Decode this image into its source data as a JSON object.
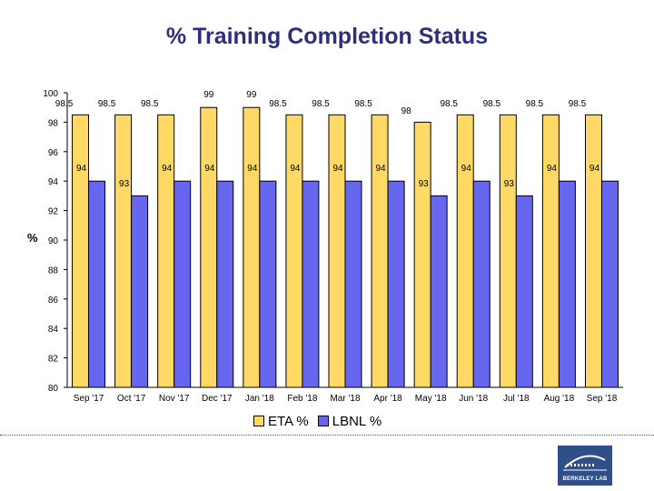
{
  "chart_data": {
    "type": "bar",
    "title": "% Training Completion Status",
    "ylabel": "%",
    "xlabel": "",
    "ylim": [
      80,
      100
    ],
    "yticks": [
      80,
      82,
      84,
      86,
      88,
      90,
      92,
      94,
      96,
      98,
      100
    ],
    "categories": [
      "Sep '17",
      "Oct '17",
      "Nov '17",
      "Dec '17",
      "Jan '18",
      "Feb '18",
      "Mar '18",
      "Apr '18",
      "May '18",
      "Jun '18",
      "Jul '18",
      "Aug '18",
      "Sep '18"
    ],
    "series": [
      {
        "name": "ETA %",
        "color": "#ffd966",
        "values": [
          98.5,
          98.5,
          98.5,
          99,
          99,
          98.5,
          98.5,
          98.5,
          98,
          98.5,
          98.5,
          98.5,
          98.5
        ]
      },
      {
        "name": "LBNL %",
        "color": "#6666ee",
        "values": [
          94,
          93,
          94,
          94,
          94,
          94,
          94,
          94,
          93,
          94,
          93,
          94,
          94
        ]
      }
    ],
    "legend_position": "bottom",
    "grid": false
  },
  "logo": {
    "text": "BERKELEY LAB"
  }
}
